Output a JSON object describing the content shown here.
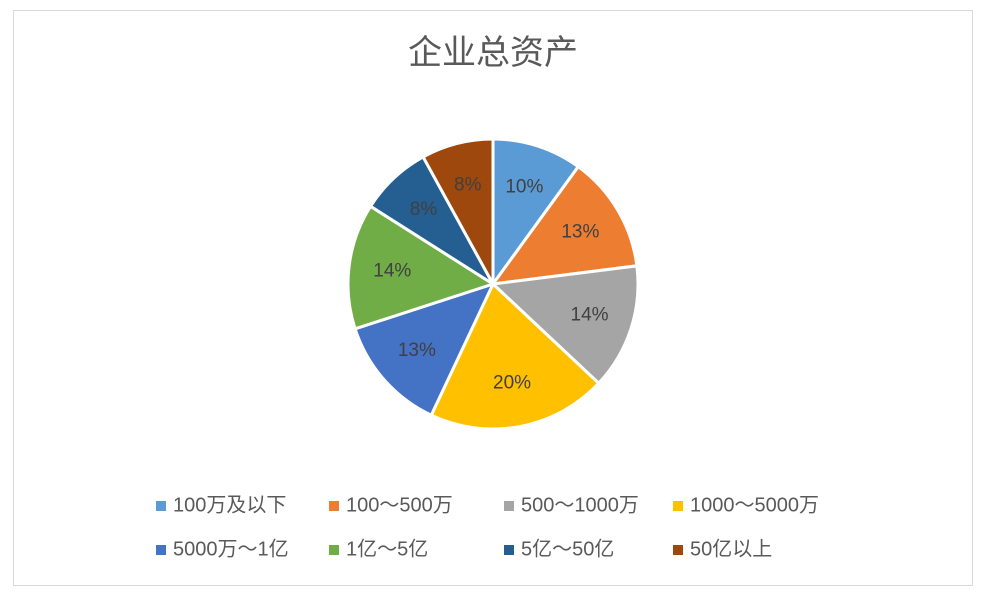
{
  "chart_data": {
    "type": "pie",
    "title": "企业总资产",
    "categories": [
      "100万及以下",
      "100～500万",
      "500～1000万",
      "1000～5000万",
      "5000万～1亿",
      "1亿～5亿",
      "5亿～50亿",
      "50亿以上"
    ],
    "values": [
      10,
      13,
      14,
      20,
      13,
      14,
      8,
      8
    ],
    "value_labels": [
      "10%",
      "13%",
      "14%",
      "20%",
      "13%",
      "14%",
      "8%",
      "8%"
    ],
    "colors": [
      "#5b9bd5",
      "#ed7d31",
      "#a5a5a5",
      "#ffc000",
      "#4472c4",
      "#70ad47",
      "#255e91",
      "#9e480e"
    ],
    "legend": "bottom"
  }
}
